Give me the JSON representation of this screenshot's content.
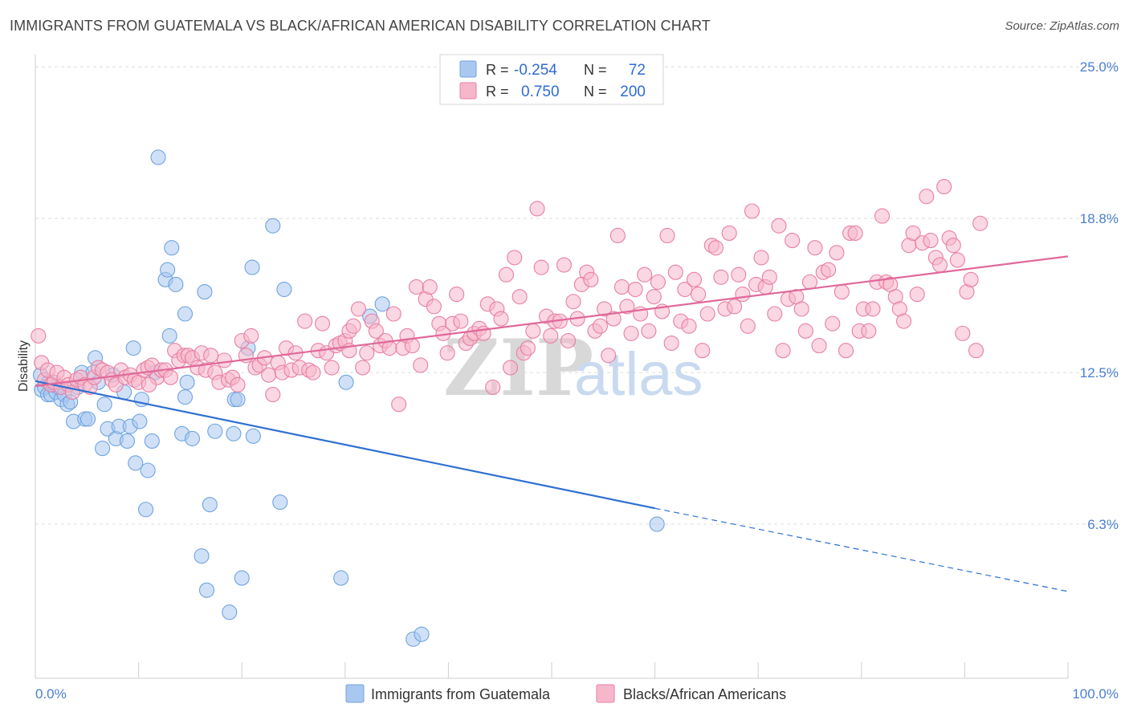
{
  "header": {
    "title": "IMMIGRANTS FROM GUATEMALA VS BLACK/AFRICAN AMERICAN DISABILITY CORRELATION CHART",
    "source": "Source: ZipAtlas.com"
  },
  "legend_top": {
    "rows": [
      {
        "r_label": "R =",
        "r_value": "-0.254",
        "n_label": "N =",
        "n_value": "72",
        "color": "#a9c8f0"
      },
      {
        "r_label": "R =",
        "r_value": "0.750",
        "n_label": "N =",
        "n_value": "200",
        "color": "#f6b7cb"
      }
    ]
  },
  "watermark": {
    "part1": "ZIP",
    "part2": "atlas"
  },
  "chart_data": {
    "type": "scatter",
    "title": "IMMIGRANTS FROM GUATEMALA VS BLACK/AFRICAN AMERICAN DISABILITY CORRELATION CHART",
    "ylabel": "Disability",
    "xlabel": "",
    "xlim": [
      0,
      100
    ],
    "ylim": [
      0,
      25.5
    ],
    "x_tick_labels": [
      "0.0%",
      "100.0%"
    ],
    "y_ticks": [
      6.3,
      12.5,
      18.8,
      25.0
    ],
    "y_tick_labels": [
      "6.3%",
      "12.5%",
      "18.8%",
      "25.0%"
    ],
    "grid": true,
    "legend_position": "bottom",
    "series": [
      {
        "name": "Immigrants from Guatemala",
        "color": "#6fa3e0",
        "fill": "#a9c8f0",
        "R": -0.254,
        "N": 72,
        "trend": {
          "x0": 0,
          "y0": 12.15,
          "x1": 60,
          "y1": 6.95,
          "dash_to_x": 100,
          "dash_to_y": 3.55
        },
        "points": [
          [
            0.5,
            12.4
          ],
          [
            0.6,
            11.8
          ],
          [
            0.9,
            11.9
          ],
          [
            1.2,
            11.6
          ],
          [
            1.3,
            12.1
          ],
          [
            1.5,
            11.6
          ],
          [
            1.7,
            12.0
          ],
          [
            2.0,
            11.7
          ],
          [
            2.2,
            11.9
          ],
          [
            2.5,
            11.4
          ],
          [
            2.8,
            11.6
          ],
          [
            3.1,
            11.2
          ],
          [
            3.4,
            11.3
          ],
          [
            3.7,
            10.5
          ],
          [
            4.1,
            11.9
          ],
          [
            4.5,
            12.5
          ],
          [
            4.8,
            10.6
          ],
          [
            5.1,
            10.6
          ],
          [
            5.6,
            12.5
          ],
          [
            5.8,
            13.1
          ],
          [
            6.1,
            12.1
          ],
          [
            6.5,
            9.4
          ],
          [
            6.7,
            11.2
          ],
          [
            7.0,
            10.2
          ],
          [
            7.5,
            12.4
          ],
          [
            7.8,
            9.8
          ],
          [
            8.1,
            10.3
          ],
          [
            8.6,
            11.7
          ],
          [
            8.9,
            9.7
          ],
          [
            9.2,
            10.3
          ],
          [
            9.5,
            13.5
          ],
          [
            9.7,
            8.8
          ],
          [
            10.1,
            10.5
          ],
          [
            10.3,
            11.4
          ],
          [
            10.7,
            6.9
          ],
          [
            10.9,
            8.5
          ],
          [
            11.3,
            9.7
          ],
          [
            11.6,
            12.5
          ],
          [
            11.9,
            21.3
          ],
          [
            12.6,
            16.3
          ],
          [
            12.8,
            16.7
          ],
          [
            13.0,
            14.0
          ],
          [
            13.2,
            17.6
          ],
          [
            13.6,
            16.1
          ],
          [
            14.2,
            10.0
          ],
          [
            14.5,
            14.9
          ],
          [
            14.5,
            11.5
          ],
          [
            14.7,
            12.1
          ],
          [
            15.2,
            9.8
          ],
          [
            16.1,
            5.0
          ],
          [
            16.4,
            15.8
          ],
          [
            16.6,
            3.6
          ],
          [
            16.9,
            7.1
          ],
          [
            17.4,
            10.1
          ],
          [
            18.8,
            2.7
          ],
          [
            19.2,
            10.0
          ],
          [
            19.3,
            11.4
          ],
          [
            19.6,
            11.4
          ],
          [
            20.6,
            13.5
          ],
          [
            21.0,
            16.8
          ],
          [
            21.1,
            9.9
          ],
          [
            23.0,
            18.5
          ],
          [
            23.7,
            7.2
          ],
          [
            24.1,
            15.9
          ],
          [
            29.6,
            4.1
          ],
          [
            30.1,
            12.1
          ],
          [
            32.4,
            14.8
          ],
          [
            33.6,
            15.3
          ],
          [
            36.6,
            1.6
          ],
          [
            37.4,
            1.8
          ],
          [
            20.0,
            4.1
          ],
          [
            60.2,
            6.3
          ]
        ]
      },
      {
        "name": "Blacks/African Americans",
        "color": "#e87fa3",
        "fill": "#f6b7cb",
        "R": 0.75,
        "N": 200,
        "trend": {
          "x0": 0,
          "y0": 11.95,
          "x1": 100,
          "y1": 17.25
        },
        "points": [
          [
            0.3,
            14.0
          ],
          [
            0.6,
            12.9
          ],
          [
            0.9,
            12.2
          ],
          [
            1.2,
            12.6
          ],
          [
            1.5,
            12.0
          ],
          [
            1.8,
            12.1
          ],
          [
            2.1,
            12.5
          ],
          [
            2.5,
            11.9
          ],
          [
            2.8,
            12.3
          ],
          [
            3.2,
            12.0
          ],
          [
            3.6,
            11.7
          ],
          [
            4.0,
            12.2
          ],
          [
            4.4,
            12.3
          ],
          [
            4.8,
            12.0
          ],
          [
            5.3,
            11.9
          ],
          [
            5.7,
            12.3
          ],
          [
            6.1,
            12.7
          ],
          [
            6.5,
            12.6
          ],
          [
            7.0,
            12.5
          ],
          [
            7.4,
            12.2
          ],
          [
            7.8,
            12.0
          ],
          [
            8.3,
            12.6
          ],
          [
            8.7,
            12.3
          ],
          [
            9.2,
            12.4
          ],
          [
            9.6,
            12.2
          ],
          [
            10.0,
            12.1
          ],
          [
            10.5,
            12.6
          ],
          [
            10.9,
            12.7
          ],
          [
            11.3,
            12.8
          ],
          [
            11.8,
            12.3
          ],
          [
            12.2,
            12.6
          ],
          [
            12.6,
            12.6
          ],
          [
            13.1,
            12.3
          ],
          [
            13.5,
            13.4
          ],
          [
            13.9,
            13.0
          ],
          [
            14.4,
            13.2
          ],
          [
            14.8,
            13.2
          ],
          [
            15.2,
            13.1
          ],
          [
            15.7,
            12.7
          ],
          [
            16.1,
            13.3
          ],
          [
            16.5,
            12.6
          ],
          [
            17.0,
            13.2
          ],
          [
            17.4,
            12.5
          ],
          [
            17.8,
            12.1
          ],
          [
            18.3,
            13.0
          ],
          [
            18.7,
            12.2
          ],
          [
            19.1,
            12.3
          ],
          [
            19.6,
            12.0
          ],
          [
            20.0,
            13.8
          ],
          [
            20.4,
            13.2
          ],
          [
            20.9,
            14.0
          ],
          [
            21.3,
            12.7
          ],
          [
            21.7,
            12.8
          ],
          [
            22.2,
            13.1
          ],
          [
            22.6,
            12.4
          ],
          [
            23.0,
            11.6
          ],
          [
            23.5,
            12.9
          ],
          [
            23.9,
            12.5
          ],
          [
            24.3,
            13.5
          ],
          [
            24.8,
            12.6
          ],
          [
            25.2,
            13.3
          ],
          [
            25.6,
            12.7
          ],
          [
            26.1,
            14.6
          ],
          [
            26.5,
            12.6
          ],
          [
            26.9,
            12.5
          ],
          [
            27.4,
            13.4
          ],
          [
            27.8,
            14.5
          ],
          [
            28.2,
            13.3
          ],
          [
            28.7,
            12.7
          ],
          [
            29.1,
            13.6
          ],
          [
            29.5,
            13.7
          ],
          [
            30.0,
            13.8
          ],
          [
            30.4,
            14.2
          ],
          [
            30.8,
            14.4
          ],
          [
            31.3,
            15.1
          ],
          [
            31.7,
            12.7
          ],
          [
            32.1,
            13.3
          ],
          [
            32.6,
            14.6
          ],
          [
            33.0,
            14.2
          ],
          [
            33.4,
            13.6
          ],
          [
            33.9,
            13.8
          ],
          [
            34.3,
            13.5
          ],
          [
            34.7,
            14.9
          ],
          [
            35.2,
            11.2
          ],
          [
            35.6,
            13.5
          ],
          [
            36.0,
            14.0
          ],
          [
            36.5,
            13.6
          ],
          [
            36.9,
            16.0
          ],
          [
            37.3,
            12.8
          ],
          [
            37.8,
            15.5
          ],
          [
            38.2,
            16.0
          ],
          [
            38.6,
            15.2
          ],
          [
            39.1,
            14.5
          ],
          [
            39.5,
            14.1
          ],
          [
            39.9,
            13.3
          ],
          [
            40.4,
            14.5
          ],
          [
            40.8,
            15.7
          ],
          [
            41.2,
            14.6
          ],
          [
            41.7,
            13.7
          ],
          [
            42.1,
            13.9
          ],
          [
            42.5,
            14.1
          ],
          [
            43.0,
            14.3
          ],
          [
            43.4,
            14.1
          ],
          [
            43.8,
            15.3
          ],
          [
            44.3,
            11.9
          ],
          [
            44.7,
            15.1
          ],
          [
            45.1,
            14.7
          ],
          [
            45.6,
            16.5
          ],
          [
            46.0,
            12.7
          ],
          [
            46.4,
            17.2
          ],
          [
            46.9,
            15.6
          ],
          [
            47.3,
            13.3
          ],
          [
            47.7,
            13.5
          ],
          [
            48.2,
            14.2
          ],
          [
            48.6,
            19.2
          ],
          [
            49.0,
            16.8
          ],
          [
            49.5,
            14.8
          ],
          [
            49.9,
            14.0
          ],
          [
            50.3,
            14.6
          ],
          [
            50.8,
            14.6
          ],
          [
            51.2,
            16.9
          ],
          [
            51.6,
            13.8
          ],
          [
            52.1,
            15.4
          ],
          [
            52.5,
            14.7
          ],
          [
            52.9,
            16.1
          ],
          [
            53.4,
            16.6
          ],
          [
            53.8,
            16.3
          ],
          [
            54.2,
            14.2
          ],
          [
            54.7,
            14.4
          ],
          [
            55.1,
            15.1
          ],
          [
            55.5,
            13.2
          ],
          [
            56.0,
            14.7
          ],
          [
            56.4,
            18.1
          ],
          [
            56.8,
            16.0
          ],
          [
            57.3,
            15.2
          ],
          [
            57.7,
            14.1
          ],
          [
            58.1,
            15.9
          ],
          [
            58.6,
            14.9
          ],
          [
            59.0,
            16.5
          ],
          [
            59.4,
            14.2
          ],
          [
            59.9,
            15.6
          ],
          [
            60.3,
            16.2
          ],
          [
            60.7,
            15.0
          ],
          [
            61.2,
            18.1
          ],
          [
            61.6,
            13.7
          ],
          [
            62.0,
            16.6
          ],
          [
            62.5,
            14.6
          ],
          [
            62.9,
            15.9
          ],
          [
            63.3,
            14.4
          ],
          [
            63.8,
            16.3
          ],
          [
            64.2,
            15.7
          ],
          [
            64.6,
            13.4
          ],
          [
            65.1,
            14.9
          ],
          [
            65.5,
            17.7
          ],
          [
            65.9,
            17.6
          ],
          [
            66.4,
            16.4
          ],
          [
            66.8,
            15.1
          ],
          [
            67.2,
            18.2
          ],
          [
            67.7,
            15.2
          ],
          [
            68.1,
            16.5
          ],
          [
            68.5,
            15.7
          ],
          [
            69.0,
            14.4
          ],
          [
            69.4,
            19.1
          ],
          [
            69.8,
            16.1
          ],
          [
            70.3,
            17.2
          ],
          [
            70.7,
            16.0
          ],
          [
            71.1,
            16.4
          ],
          [
            71.6,
            14.9
          ],
          [
            72.0,
            18.5
          ],
          [
            72.4,
            13.4
          ],
          [
            72.9,
            15.5
          ],
          [
            73.3,
            17.9
          ],
          [
            73.7,
            15.6
          ],
          [
            74.2,
            15.1
          ],
          [
            74.6,
            14.2
          ],
          [
            75.0,
            16.2
          ],
          [
            75.5,
            17.6
          ],
          [
            75.9,
            13.6
          ],
          [
            76.3,
            16.6
          ],
          [
            76.8,
            16.7
          ],
          [
            77.2,
            14.5
          ],
          [
            77.6,
            17.4
          ],
          [
            78.1,
            15.8
          ],
          [
            78.5,
            13.4
          ],
          [
            78.9,
            18.2
          ],
          [
            79.4,
            18.2
          ],
          [
            79.8,
            14.2
          ],
          [
            80.2,
            15.1
          ],
          [
            80.7,
            14.2
          ],
          [
            81.1,
            15.1
          ],
          [
            81.5,
            16.2
          ],
          [
            82.0,
            18.9
          ],
          [
            82.4,
            16.2
          ],
          [
            82.8,
            16.1
          ],
          [
            83.3,
            15.6
          ],
          [
            83.7,
            15.1
          ],
          [
            84.1,
            14.6
          ],
          [
            84.6,
            17.7
          ],
          [
            85.0,
            18.2
          ],
          [
            85.4,
            15.7
          ],
          [
            85.9,
            17.8
          ],
          [
            86.3,
            19.7
          ],
          [
            86.7,
            17.9
          ],
          [
            87.2,
            17.2
          ],
          [
            87.6,
            16.9
          ],
          [
            88.0,
            20.1
          ],
          [
            88.5,
            18.0
          ],
          [
            88.9,
            17.7
          ],
          [
            89.3,
            17.1
          ],
          [
            89.8,
            14.1
          ],
          [
            90.2,
            15.8
          ],
          [
            90.6,
            16.3
          ],
          [
            91.1,
            13.4
          ],
          [
            91.5,
            18.6
          ],
          [
            30.4,
            13.4
          ],
          [
            11.0,
            12.0
          ]
        ]
      }
    ]
  }
}
